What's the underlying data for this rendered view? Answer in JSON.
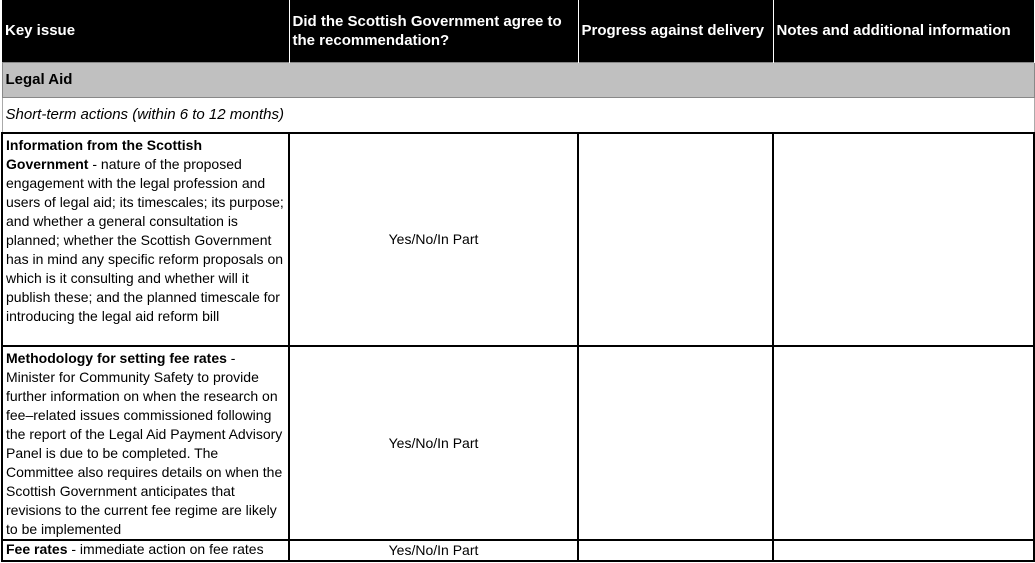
{
  "header": {
    "col1": "Key issue",
    "col2": "Did the Scottish Government agree to the recommendation?",
    "col3": "Progress against delivery",
    "col4": "Notes and additional information"
  },
  "section": "Legal Aid",
  "subsection": "Short-term actions (within 6 to 12 months)",
  "rows": [
    {
      "title": "Information from the Scottish Government",
      "text": " - nature of the proposed engagement with the legal profession and users of legal aid; its timescales; its purpose; and whether a general consultation is planned; whether the Scottish Government has in mind any specific reform proposals on which is it consulting and whether will it publish these; and the planned timescale for introducing the legal aid reform bill",
      "agree": "Yes/No/In Part",
      "progress": "",
      "notes": ""
    },
    {
      "title": "Methodology for setting fee rates",
      "text": " - Minister for Community Safety to provide further information on when the research on fee–related issues commissioned following the report of the Legal Aid Payment Advisory Panel is due to be completed. The Committee also requires details on when the Scottish Government anticipates that revisions to the current fee regime are likely to be implemented",
      "agree": "Yes/No/In Part",
      "progress": "",
      "notes": ""
    },
    {
      "title": "Fee rates",
      "text": " - immediate action on fee rates",
      "agree": "Yes/No/In Part",
      "progress": "",
      "notes": ""
    }
  ]
}
